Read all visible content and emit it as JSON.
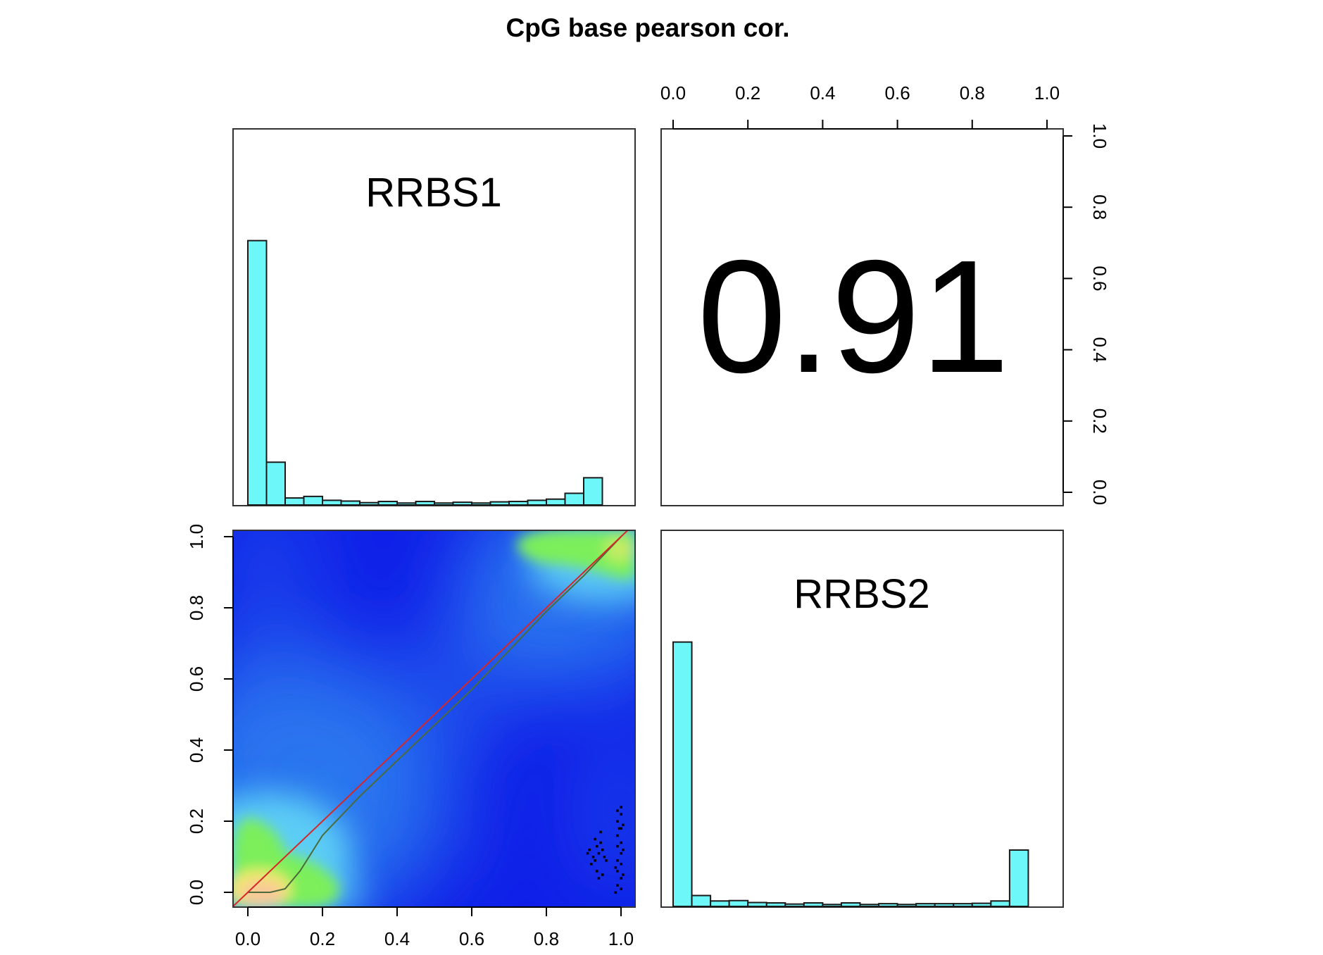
{
  "chart_data": {
    "type": "pairs",
    "title": "CpG base pearson cor.",
    "axis_range": [
      0,
      1
    ],
    "ticks": [
      "0.0",
      "0.2",
      "0.4",
      "0.6",
      "0.8",
      "1.0"
    ],
    "samples": [
      "RRBS1",
      "RRBS2"
    ],
    "correlation": "0.91",
    "histograms": [
      {
        "name": "RRBS1",
        "bin_width": 0.05,
        "values": [
          0.68,
          0.11,
          0.018,
          0.022,
          0.012,
          0.01,
          0.006,
          0.009,
          0.005,
          0.009,
          0.005,
          0.007,
          0.005,
          0.008,
          0.009,
          0.012,
          0.015,
          0.03,
          0.07
        ]
      },
      {
        "name": "RRBS2",
        "bin_width": 0.05,
        "values": [
          0.68,
          0.028,
          0.014,
          0.015,
          0.01,
          0.009,
          0.006,
          0.009,
          0.005,
          0.009,
          0.005,
          0.007,
          0.005,
          0.007,
          0.007,
          0.007,
          0.008,
          0.014,
          0.145
        ]
      }
    ],
    "scatter": {
      "display": "smoothScatter density",
      "colors": [
        "#1020e8",
        "#2a7af0",
        "#5fd3f5",
        "#7bef5a",
        "#f2e86a",
        "#f9c89a"
      ],
      "reference_line": {
        "color": "#d62728",
        "points": [
          [
            -0.04,
            -0.04
          ],
          [
            1.04,
            1.04
          ]
        ]
      },
      "fit_line": {
        "color": "#4b6b3a",
        "points": [
          [
            0.0,
            0.0
          ],
          [
            0.06,
            0.0
          ],
          [
            0.1,
            0.01
          ],
          [
            0.14,
            0.06
          ],
          [
            0.2,
            0.16
          ],
          [
            0.3,
            0.27
          ],
          [
            0.4,
            0.37
          ],
          [
            0.5,
            0.47
          ],
          [
            0.55,
            0.52
          ],
          [
            0.6,
            0.57
          ],
          [
            0.7,
            0.68
          ],
          [
            0.8,
            0.79
          ],
          [
            0.9,
            0.89
          ],
          [
            1.0,
            1.0
          ]
        ]
      },
      "outliers": [
        [
          0.915,
          0.12
        ],
        [
          0.925,
          0.1
        ],
        [
          0.935,
          0.13
        ],
        [
          0.92,
          0.08
        ],
        [
          0.94,
          0.11
        ],
        [
          0.93,
          0.09
        ],
        [
          0.945,
          0.14
        ],
        [
          0.95,
          0.12
        ],
        [
          0.91,
          0.11
        ],
        [
          0.955,
          0.1
        ],
        [
          0.935,
          0.06
        ],
        [
          0.95,
          0.05
        ],
        [
          0.94,
          0.04
        ],
        [
          0.96,
          0.09
        ],
        [
          0.945,
          0.17
        ],
        [
          0.93,
          0.15
        ],
        [
          0.985,
          0.0
        ],
        [
          0.99,
          0.02
        ],
        [
          0.99,
          0.06
        ],
        [
          0.99,
          0.09
        ],
        [
          0.99,
          0.13
        ],
        [
          0.99,
          0.16
        ],
        [
          0.99,
          0.2
        ],
        [
          0.99,
          0.23
        ],
        [
          0.995,
          0.18
        ],
        [
          1.0,
          0.01
        ],
        [
          1.0,
          0.04
        ],
        [
          1.0,
          0.08
        ],
        [
          1.0,
          0.11
        ],
        [
          1.0,
          0.14
        ],
        [
          1.0,
          0.18
        ],
        [
          1.0,
          0.22
        ],
        [
          1.0,
          0.24
        ],
        [
          1.005,
          0.12
        ],
        [
          1.005,
          0.19
        ],
        [
          1.005,
          0.05
        ],
        [
          0.985,
          0.07
        ]
      ]
    }
  }
}
